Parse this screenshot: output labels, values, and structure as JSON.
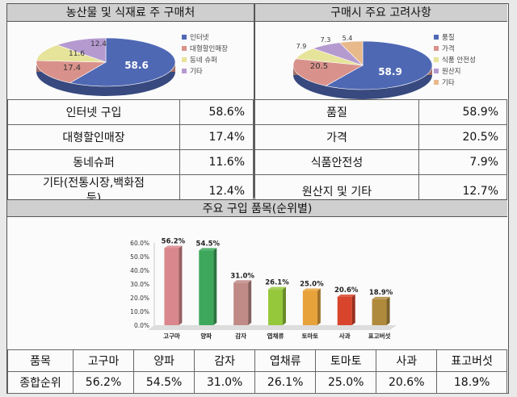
{
  "left_panel": {
    "title": "농산물 및 식재료 주 구매처"
  },
  "right_panel": {
    "title": "구매시 주요 고려사항"
  },
  "middle_panel": {
    "title": "주요 구입 품목(순위별)"
  },
  "pie_left_labels": [
    "58.6",
    "17.4",
    "11.6",
    "12.4"
  ],
  "pie_right_labels": [
    "58.9",
    "20.5",
    "7.9",
    "7.3",
    "5.4"
  ],
  "left_table": [
    {
      "label": "인터넷 구입",
      "value": "58.6%"
    },
    {
      "label": "대형할인매장",
      "value": "17.4%"
    },
    {
      "label": "동네슈퍼",
      "value": "11.6%"
    },
    {
      "label": "기타(전통시장,백화점",
      "label2": "등)",
      "value": "12.4%"
    }
  ],
  "right_table": [
    {
      "label": "품질",
      "value": "58.9%"
    },
    {
      "label": "가격",
      "value": "20.5%"
    },
    {
      "label": "식품안전성",
      "value": "7.9%"
    },
    {
      "label": "원산지 및 기타",
      "value": "12.7%"
    }
  ],
  "bottom_table": {
    "header_label": "품목",
    "row_label": "종합순위",
    "items": [
      "고구마",
      "양파",
      "감자",
      "엽채류",
      "토마토",
      "사과",
      "표고버섯"
    ],
    "values": [
      "56.2%",
      "54.5%",
      "31.0%",
      "26.1%",
      "25.0%",
      "20.6%",
      "18.9%"
    ]
  },
  "chart_data": [
    {
      "type": "pie",
      "title": "농산물 및 식재료 주 구매처",
      "labels": [
        "인터넷",
        "대형할인매장",
        "동네 슈퍼",
        "기타"
      ],
      "values": [
        58.6,
        17.4,
        11.6,
        12.4
      ],
      "colors": [
        "#4f68b4",
        "#d9928b",
        "#e6e39a",
        "#b59ad0"
      ],
      "legend": "right"
    },
    {
      "type": "pie",
      "title": "구매시 주요 고려사항",
      "labels": [
        "품질",
        "가격",
        "식품 안전성",
        "원산지",
        "기타"
      ],
      "values": [
        58.9,
        20.5,
        7.9,
        7.3,
        5.4
      ],
      "colors": [
        "#4f68b4",
        "#d9928b",
        "#e6e39a",
        "#b59ad0",
        "#e8b98a"
      ],
      "legend": "right"
    },
    {
      "type": "bar",
      "title": "주요 구입 품목(순위별)",
      "categories": [
        "고구마",
        "양파",
        "감자",
        "엽채류",
        "토마토",
        "사과",
        "표고버섯"
      ],
      "values": [
        56.2,
        54.5,
        31.0,
        26.1,
        25.0,
        20.6,
        18.9
      ],
      "value_labels": [
        "56.2%",
        "54.5%",
        "31.0%",
        "26.1%",
        "25.0%",
        "20.6%",
        "18.9%"
      ],
      "colors": [
        "#d9878c",
        "#3da85b",
        "#c08a86",
        "#96c83c",
        "#e8a23a",
        "#d9452c",
        "#b08a3c"
      ],
      "yticks": [
        "0.0%",
        "10.0%",
        "20.0%",
        "30.0%",
        "40.0%",
        "50.0%",
        "60.0%"
      ],
      "ylim": [
        0,
        60
      ],
      "grid": false
    }
  ]
}
